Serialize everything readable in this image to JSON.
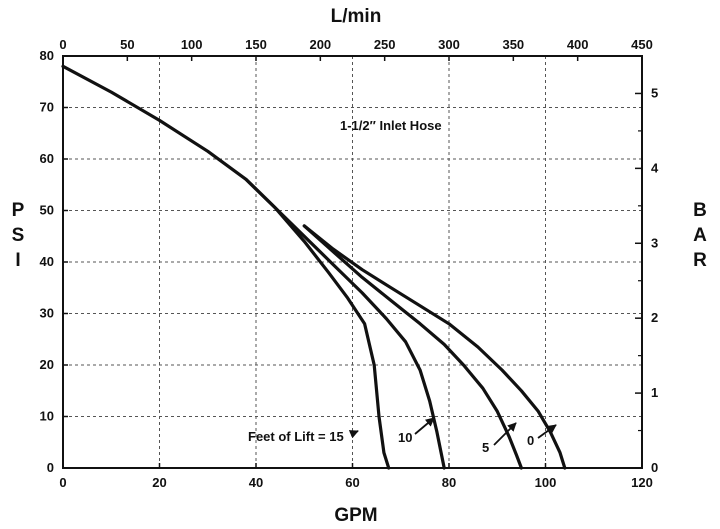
{
  "chart_data": {
    "type": "line",
    "title": "",
    "xlabel": "GPM",
    "ylabel": "PSI",
    "x2label": "L/min",
    "y2label": "BAR",
    "xlim": [
      0,
      120
    ],
    "ylim": [
      0,
      80
    ],
    "x2lim": [
      0,
      450
    ],
    "y2lim": [
      0,
      5.5
    ],
    "xticks": [
      "0",
      "20",
      "40",
      "60",
      "80",
      "100",
      "120"
    ],
    "yticks": [
      "0",
      "10",
      "20",
      "30",
      "40",
      "50",
      "60",
      "70",
      "80"
    ],
    "x2ticks": [
      "0",
      "50",
      "100",
      "150",
      "200",
      "250",
      "300",
      "350",
      "400",
      "450"
    ],
    "y2ticks": [
      "0",
      "1",
      "2",
      "3",
      "4",
      "5"
    ],
    "grid": true,
    "legend": "none",
    "annotations": {
      "inlet_hose": "1-1/2″ Inlet Hose",
      "feet_of_lift": "Feet of Lift = 15",
      "lift_10": "10",
      "lift_5": "5",
      "lift_0": "0"
    },
    "series": [
      {
        "x": [
          0,
          10,
          20,
          30,
          38,
          44,
          50,
          55,
          59,
          62.5,
          64.5,
          65.5,
          66.5,
          67.5
        ],
        "y": [
          78,
          73,
          67.5,
          61.5,
          56,
          50.5,
          44,
          38,
          33,
          28,
          20,
          10,
          3,
          0
        ]
      },
      {
        "x": [
          38,
          44,
          50,
          56,
          62,
          67,
          71,
          74,
          76,
          77.5,
          79
        ],
        "y": [
          56,
          50.5,
          45,
          39.5,
          34,
          29,
          24.5,
          19,
          13,
          7,
          0
        ]
      },
      {
        "x": [
          50,
          56,
          62,
          68,
          74,
          79,
          83,
          87,
          90,
          92.5,
          94,
          95
        ],
        "y": [
          47,
          42,
          37,
          32.5,
          28,
          24,
          20,
          15.5,
          11,
          6,
          2.5,
          0
        ]
      },
      {
        "x": [
          50,
          56,
          62,
          68,
          74,
          80,
          86,
          91,
          95,
          98.5,
          101,
          103,
          104
        ],
        "y": [
          47,
          42.5,
          38.5,
          35,
          31.5,
          28,
          23.5,
          19,
          15,
          11,
          7,
          3,
          0
        ]
      }
    ]
  }
}
